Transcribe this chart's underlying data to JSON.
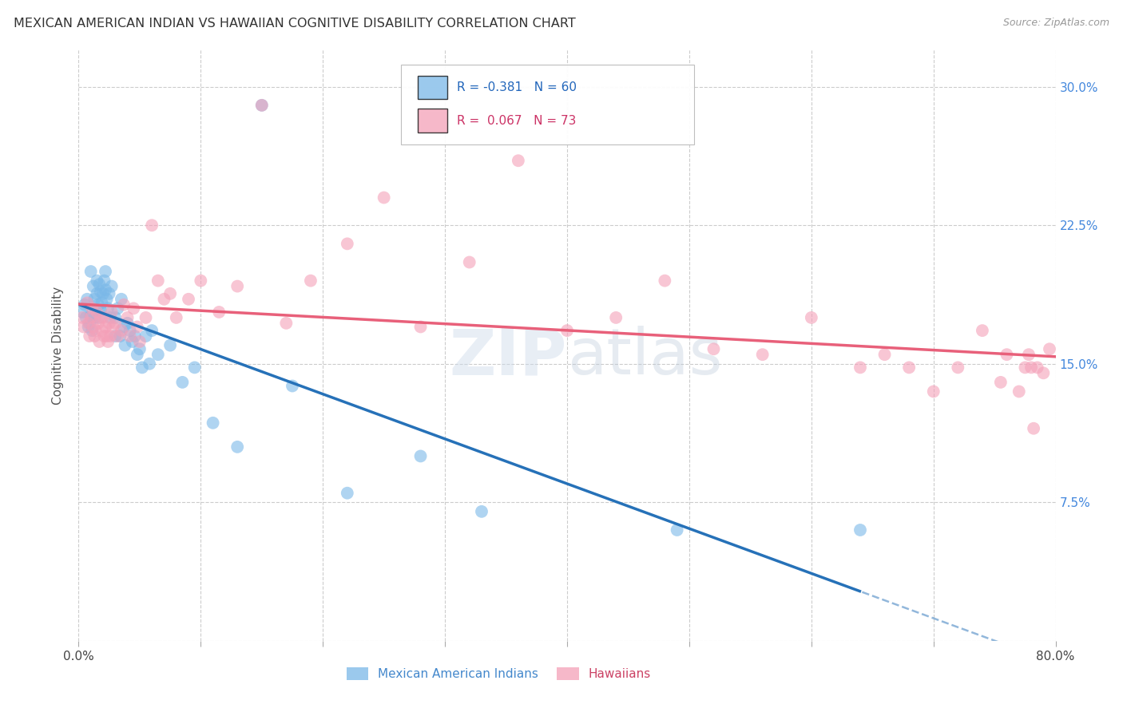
{
  "title": "MEXICAN AMERICAN INDIAN VS HAWAIIAN COGNITIVE DISABILITY CORRELATION CHART",
  "source": "Source: ZipAtlas.com",
  "ylabel": "Cognitive Disability",
  "xlim": [
    0.0,
    0.8
  ],
  "ylim": [
    0.0,
    0.32
  ],
  "xtick_positions": [
    0.0,
    0.1,
    0.2,
    0.3,
    0.4,
    0.5,
    0.6,
    0.7,
    0.8
  ],
  "xticklabels": [
    "0.0%",
    "",
    "",
    "",
    "",
    "",
    "",
    "",
    "80.0%"
  ],
  "ytick_positions": [
    0.0,
    0.075,
    0.15,
    0.225,
    0.3
  ],
  "yticklabels_right": [
    "",
    "7.5%",
    "15.0%",
    "22.5%",
    "30.0%"
  ],
  "grid_color": "#cccccc",
  "background_color": "#ffffff",
  "watermark": "ZIPatlas",
  "blue_color": "#7ab8e8",
  "pink_color": "#f4a0b8",
  "blue_line_color": "#2671b8",
  "pink_line_color": "#e8607a",
  "blue_x": [
    0.003,
    0.005,
    0.006,
    0.007,
    0.008,
    0.009,
    0.01,
    0.01,
    0.011,
    0.012,
    0.013,
    0.013,
    0.014,
    0.015,
    0.015,
    0.016,
    0.016,
    0.017,
    0.018,
    0.018,
    0.019,
    0.02,
    0.021,
    0.022,
    0.022,
    0.023,
    0.024,
    0.025,
    0.026,
    0.027,
    0.03,
    0.03,
    0.032,
    0.034,
    0.035,
    0.037,
    0.038,
    0.04,
    0.042,
    0.044,
    0.046,
    0.048,
    0.05,
    0.052,
    0.055,
    0.058,
    0.06,
    0.065,
    0.075,
    0.085,
    0.095,
    0.11,
    0.13,
    0.15,
    0.175,
    0.22,
    0.28,
    0.33,
    0.49,
    0.64
  ],
  "blue_y": [
    0.178,
    0.182,
    0.175,
    0.185,
    0.17,
    0.172,
    0.2,
    0.176,
    0.168,
    0.192,
    0.175,
    0.185,
    0.179,
    0.195,
    0.188,
    0.182,
    0.175,
    0.193,
    0.189,
    0.179,
    0.183,
    0.188,
    0.195,
    0.19,
    0.2,
    0.185,
    0.18,
    0.188,
    0.175,
    0.192,
    0.175,
    0.165,
    0.18,
    0.165,
    0.185,
    0.17,
    0.16,
    0.172,
    0.168,
    0.162,
    0.165,
    0.155,
    0.158,
    0.148,
    0.165,
    0.15,
    0.168,
    0.155,
    0.16,
    0.14,
    0.148,
    0.118,
    0.105,
    0.29,
    0.138,
    0.08,
    0.1,
    0.07,
    0.06,
    0.06
  ],
  "pink_x": [
    0.003,
    0.004,
    0.007,
    0.008,
    0.009,
    0.01,
    0.011,
    0.012,
    0.013,
    0.014,
    0.015,
    0.016,
    0.017,
    0.018,
    0.019,
    0.02,
    0.021,
    0.022,
    0.023,
    0.024,
    0.025,
    0.026,
    0.027,
    0.028,
    0.03,
    0.032,
    0.035,
    0.037,
    0.04,
    0.042,
    0.045,
    0.048,
    0.05,
    0.055,
    0.06,
    0.065,
    0.07,
    0.075,
    0.08,
    0.09,
    0.1,
    0.115,
    0.13,
    0.15,
    0.17,
    0.19,
    0.22,
    0.25,
    0.28,
    0.32,
    0.36,
    0.4,
    0.44,
    0.48,
    0.52,
    0.56,
    0.6,
    0.64,
    0.66,
    0.68,
    0.7,
    0.72,
    0.74,
    0.755,
    0.76,
    0.77,
    0.775,
    0.778,
    0.78,
    0.782,
    0.785,
    0.79,
    0.795
  ],
  "pink_y": [
    0.175,
    0.17,
    0.183,
    0.172,
    0.165,
    0.175,
    0.18,
    0.17,
    0.165,
    0.168,
    0.178,
    0.172,
    0.162,
    0.175,
    0.168,
    0.175,
    0.165,
    0.17,
    0.165,
    0.162,
    0.172,
    0.165,
    0.178,
    0.17,
    0.172,
    0.165,
    0.168,
    0.182,
    0.175,
    0.165,
    0.18,
    0.17,
    0.162,
    0.175,
    0.225,
    0.195,
    0.185,
    0.188,
    0.175,
    0.185,
    0.195,
    0.178,
    0.192,
    0.29,
    0.172,
    0.195,
    0.215,
    0.24,
    0.17,
    0.205,
    0.26,
    0.168,
    0.175,
    0.195,
    0.158,
    0.155,
    0.175,
    0.148,
    0.155,
    0.148,
    0.135,
    0.148,
    0.168,
    0.14,
    0.155,
    0.135,
    0.148,
    0.155,
    0.148,
    0.115,
    0.148,
    0.145,
    0.158
  ]
}
